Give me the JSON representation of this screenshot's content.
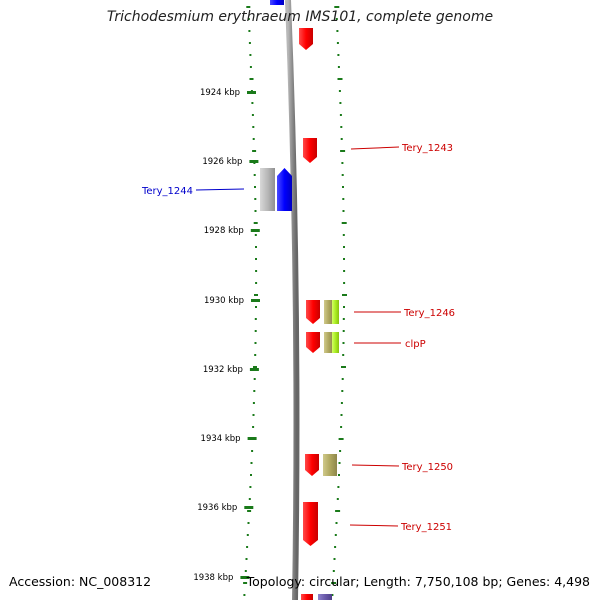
{
  "title": "Trichodesmium erythraeum IMS101, complete genome",
  "accession": "Accession: NC_008312",
  "topology": "Topology: circular; Length: 7,750,108 bp; Genes: 4,498",
  "colors": {
    "backbone": "#8c8c8c",
    "tick": "#1a7a1a",
    "forward_gene": "#ff0000",
    "reverse_gene": "#0000ff",
    "forward_label": "#cc0000",
    "reverse_label": "#0000cc",
    "grey_feature": "#b0b0b0",
    "olive_feature": "#b0a860",
    "lime_feature": "#aaee22",
    "purple_feature": "#6a5aaa"
  },
  "scale_labels": [
    "1924 kbp",
    "1926 kbp",
    "1928 kbp",
    "1930 kbp",
    "1932 kbp",
    "1934 kbp",
    "1936 kbp",
    "1938 kbp"
  ],
  "gene_labels": [
    {
      "text": "Tery_1243",
      "strand": "forward"
    },
    {
      "text": "Tery_1244",
      "strand": "reverse"
    },
    {
      "text": "Tery_1246",
      "strand": "forward"
    },
    {
      "text": "clpP",
      "strand": "forward"
    },
    {
      "text": "Tery_1250",
      "strand": "forward"
    },
    {
      "text": "Tery_1251",
      "strand": "forward"
    }
  ]
}
